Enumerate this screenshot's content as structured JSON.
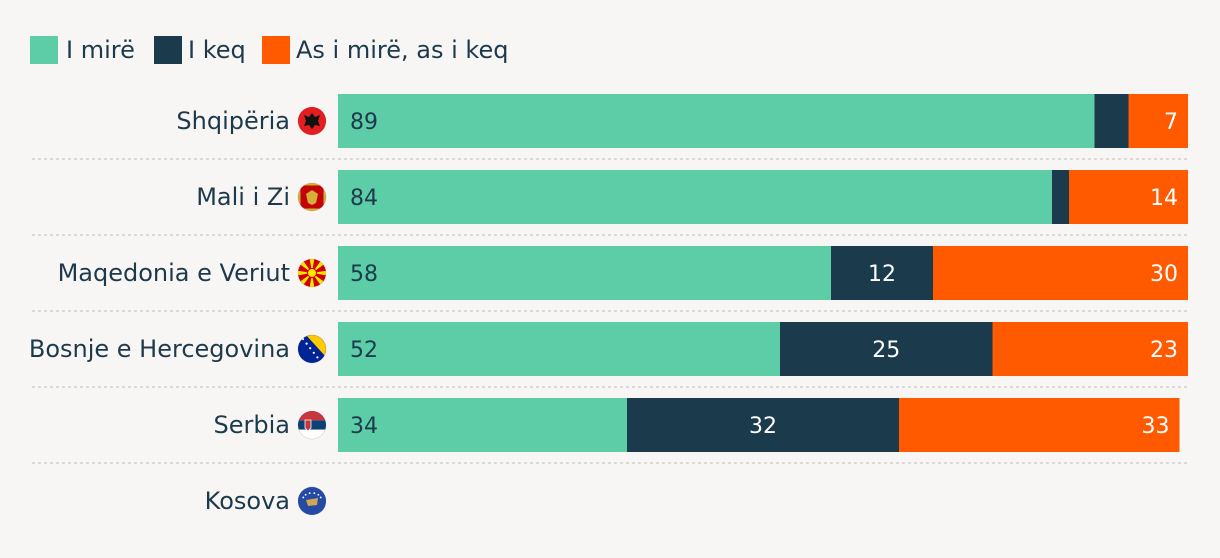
{
  "chart_data": {
    "type": "bar",
    "orientation": "horizontal",
    "stacked": true,
    "xlim": [
      0,
      100
    ],
    "grid": false,
    "legend_position": "top-left",
    "categories": [
      "Shqipëria",
      "Mali i Zi",
      "Maqedonia e Veriut",
      "Bosnje e Hercegovina",
      "Serbia",
      "Kosova"
    ],
    "category_flags": [
      "albania-flag-icon",
      "montenegro-flag-icon",
      "north-macedonia-flag-icon",
      "bosnia-flag-icon",
      "serbia-flag-icon",
      "kosovo-flag-icon"
    ],
    "series": [
      {
        "name": "I mirë",
        "color": "#5ccda6",
        "values": [
          89,
          84,
          58,
          52,
          34,
          null
        ],
        "labels": [
          "89",
          "84",
          "58",
          "52",
          "34",
          ""
        ]
      },
      {
        "name": "I keq",
        "color": "#1b3a4b",
        "values": [
          4,
          2,
          12,
          25,
          32,
          null
        ],
        "labels": [
          "",
          "",
          "12",
          "25",
          "32",
          ""
        ]
      },
      {
        "name": "As i mirë, as i keq",
        "color": "#ff5a00",
        "values": [
          7,
          14,
          30,
          23,
          33,
          null
        ],
        "labels": [
          "7",
          "14",
          "30",
          "23",
          "33",
          ""
        ]
      }
    ]
  }
}
